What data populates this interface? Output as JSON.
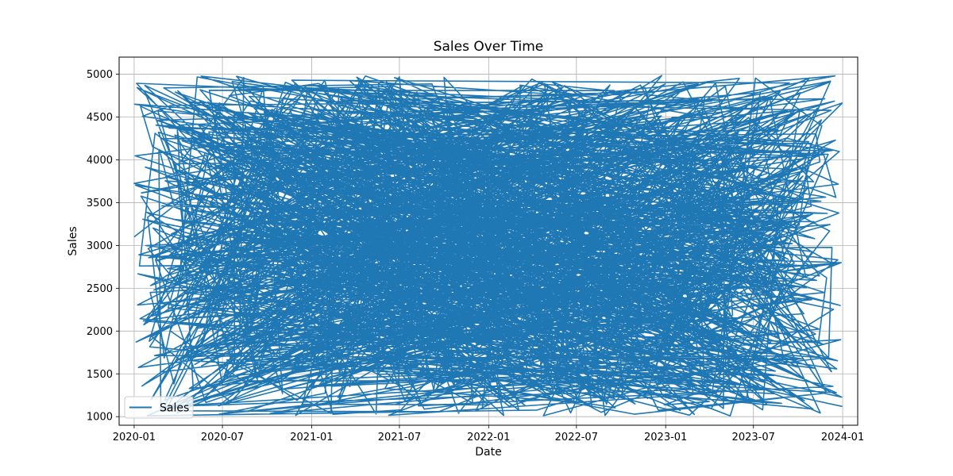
{
  "chart_data": {
    "type": "line",
    "title": "Sales Over Time",
    "xlabel": "Date",
    "ylabel": "Sales",
    "xlim": [
      "2019-12-01",
      "2024-02-01"
    ],
    "ylim": [
      900,
      5200
    ],
    "x_ticks": [
      "2020-01",
      "2020-07",
      "2021-01",
      "2021-07",
      "2022-01",
      "2022-07",
      "2023-01",
      "2023-07",
      "2024-01"
    ],
    "y_ticks": [
      1000,
      1500,
      2000,
      2500,
      3000,
      3500,
      4000,
      4500,
      5000
    ],
    "grid": true,
    "legend": {
      "placement": "lower-left",
      "entries": [
        "Sales"
      ]
    },
    "colors": {
      "series": "#1f77b4"
    },
    "series": [
      {
        "name": "Sales",
        "x_sample": [
          "2020-01-01",
          "2020-01-03",
          "2020-01-05",
          "2020-01-08",
          "2020-01-10",
          "2020-02-01",
          "2020-03-01",
          "2020-06-01",
          "2020-09-01",
          "2021-01-01",
          "2021-07-01",
          "2022-01-01",
          "2022-07-01",
          "2023-01-01",
          "2023-07-01",
          "2023-12-20",
          "2023-12-28",
          "2023-12-31"
        ],
        "y_sample": [
          3100,
          4150,
          4520,
          2190,
          3950,
          4980,
          1200,
          1030,
          4900,
          2500,
          3600,
          1050,
          4980,
          1080,
          2200,
          3150,
          5000,
          1120
        ],
        "note_generation": "dense random daily values between ~1000 and ~5000, 2020-01-01 to 2023-12-31"
      }
    ]
  }
}
